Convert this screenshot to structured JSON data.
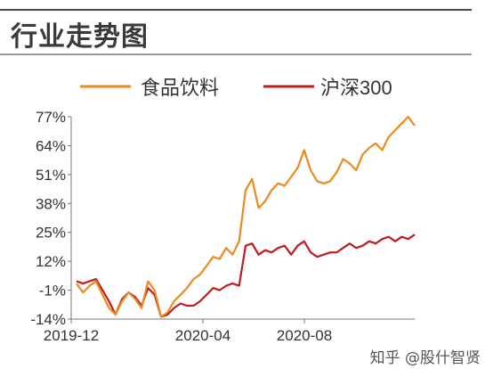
{
  "page_title": "行业走势图",
  "watermark": "知乎 @股什智贤",
  "colors": {
    "food_bev": "#ec8a1e",
    "csi300": "#c01c20",
    "axis": "#7a7a7a",
    "tick_text": "#333333"
  },
  "chart_data": {
    "type": "line",
    "title": "",
    "xlabel": "",
    "ylabel": "",
    "x_ticks": [
      "2019-12",
      "2020-04",
      "2020-08"
    ],
    "y_ticks": [
      "77%",
      "64%",
      "51%",
      "38%",
      "25%",
      "12%",
      "-1%",
      "-14%"
    ],
    "y_tick_values": [
      77,
      64,
      51,
      38,
      25,
      12,
      -1,
      -14
    ],
    "ylim": [
      -14,
      77
    ],
    "legend_position": "top",
    "grid": false,
    "series": [
      {
        "name": "食品饮料",
        "values": [
          2,
          -2,
          1,
          3,
          -3,
          -9,
          -12,
          -6,
          -2,
          -5,
          -9,
          3,
          -1,
          -13,
          -11,
          -6,
          -3,
          0,
          4,
          6,
          10,
          14,
          13,
          18,
          15,
          21,
          44,
          49,
          36,
          39,
          44,
          47,
          46,
          50,
          54,
          62,
          53,
          48,
          47,
          48,
          52,
          58,
          56,
          53,
          60,
          63,
          65,
          62,
          68,
          71,
          74,
          77,
          73
        ]
      },
      {
        "name": "沪深300",
        "values": [
          3,
          2,
          3,
          4,
          -1,
          -6,
          -12,
          -5,
          -2,
          -4,
          -8,
          0,
          -3,
          -13,
          -12,
          -9,
          -7,
          -8,
          -8,
          -6,
          -3,
          0,
          -1,
          1,
          2,
          1,
          19,
          20,
          15,
          17,
          16,
          18,
          19,
          15,
          19,
          21,
          16,
          14,
          15,
          16,
          16,
          18,
          20,
          18,
          19,
          21,
          20,
          22,
          23,
          21,
          23,
          22,
          24
        ]
      }
    ]
  }
}
